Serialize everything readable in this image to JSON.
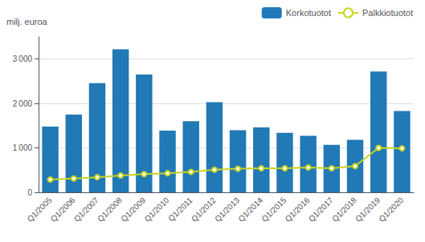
{
  "chart_data": {
    "type": "bar",
    "ylabel": "milj. euroa",
    "categories": [
      "Q1/2005",
      "Q1/2006",
      "Q1/2007",
      "Q1/2008",
      "Q1/2009",
      "Q1/2010",
      "Q1/2011",
      "Q1/2012",
      "Q1/2013",
      "Q1/2014",
      "Q1/2015",
      "Q1/2016",
      "Q1/2017",
      "Q1/2018",
      "Q1/2019",
      "Q1/2020"
    ],
    "series": [
      {
        "name": "Korkotuotot",
        "type": "bar",
        "color": "#2179b5",
        "values": [
          1480,
          1750,
          2460,
          3220,
          2650,
          1390,
          1600,
          2030,
          1400,
          1460,
          1340,
          1270,
          1070,
          1180,
          2720,
          1830
        ]
      },
      {
        "name": "Palkkiotuotot",
        "type": "line",
        "color": "#c8d422",
        "values": [
          290,
          310,
          340,
          380,
          410,
          430,
          460,
          510,
          530,
          540,
          540,
          560,
          540,
          590,
          1000,
          990
        ]
      }
    ],
    "ylim": [
      0,
      3500
    ],
    "yticks": [
      0,
      {
        "value": 1000,
        "label": "1 000"
      },
      {
        "value": 2000,
        "label": "2 000"
      },
      {
        "value": 3000,
        "label": "3 000"
      }
    ],
    "grid": true,
    "legend": "upper right"
  }
}
